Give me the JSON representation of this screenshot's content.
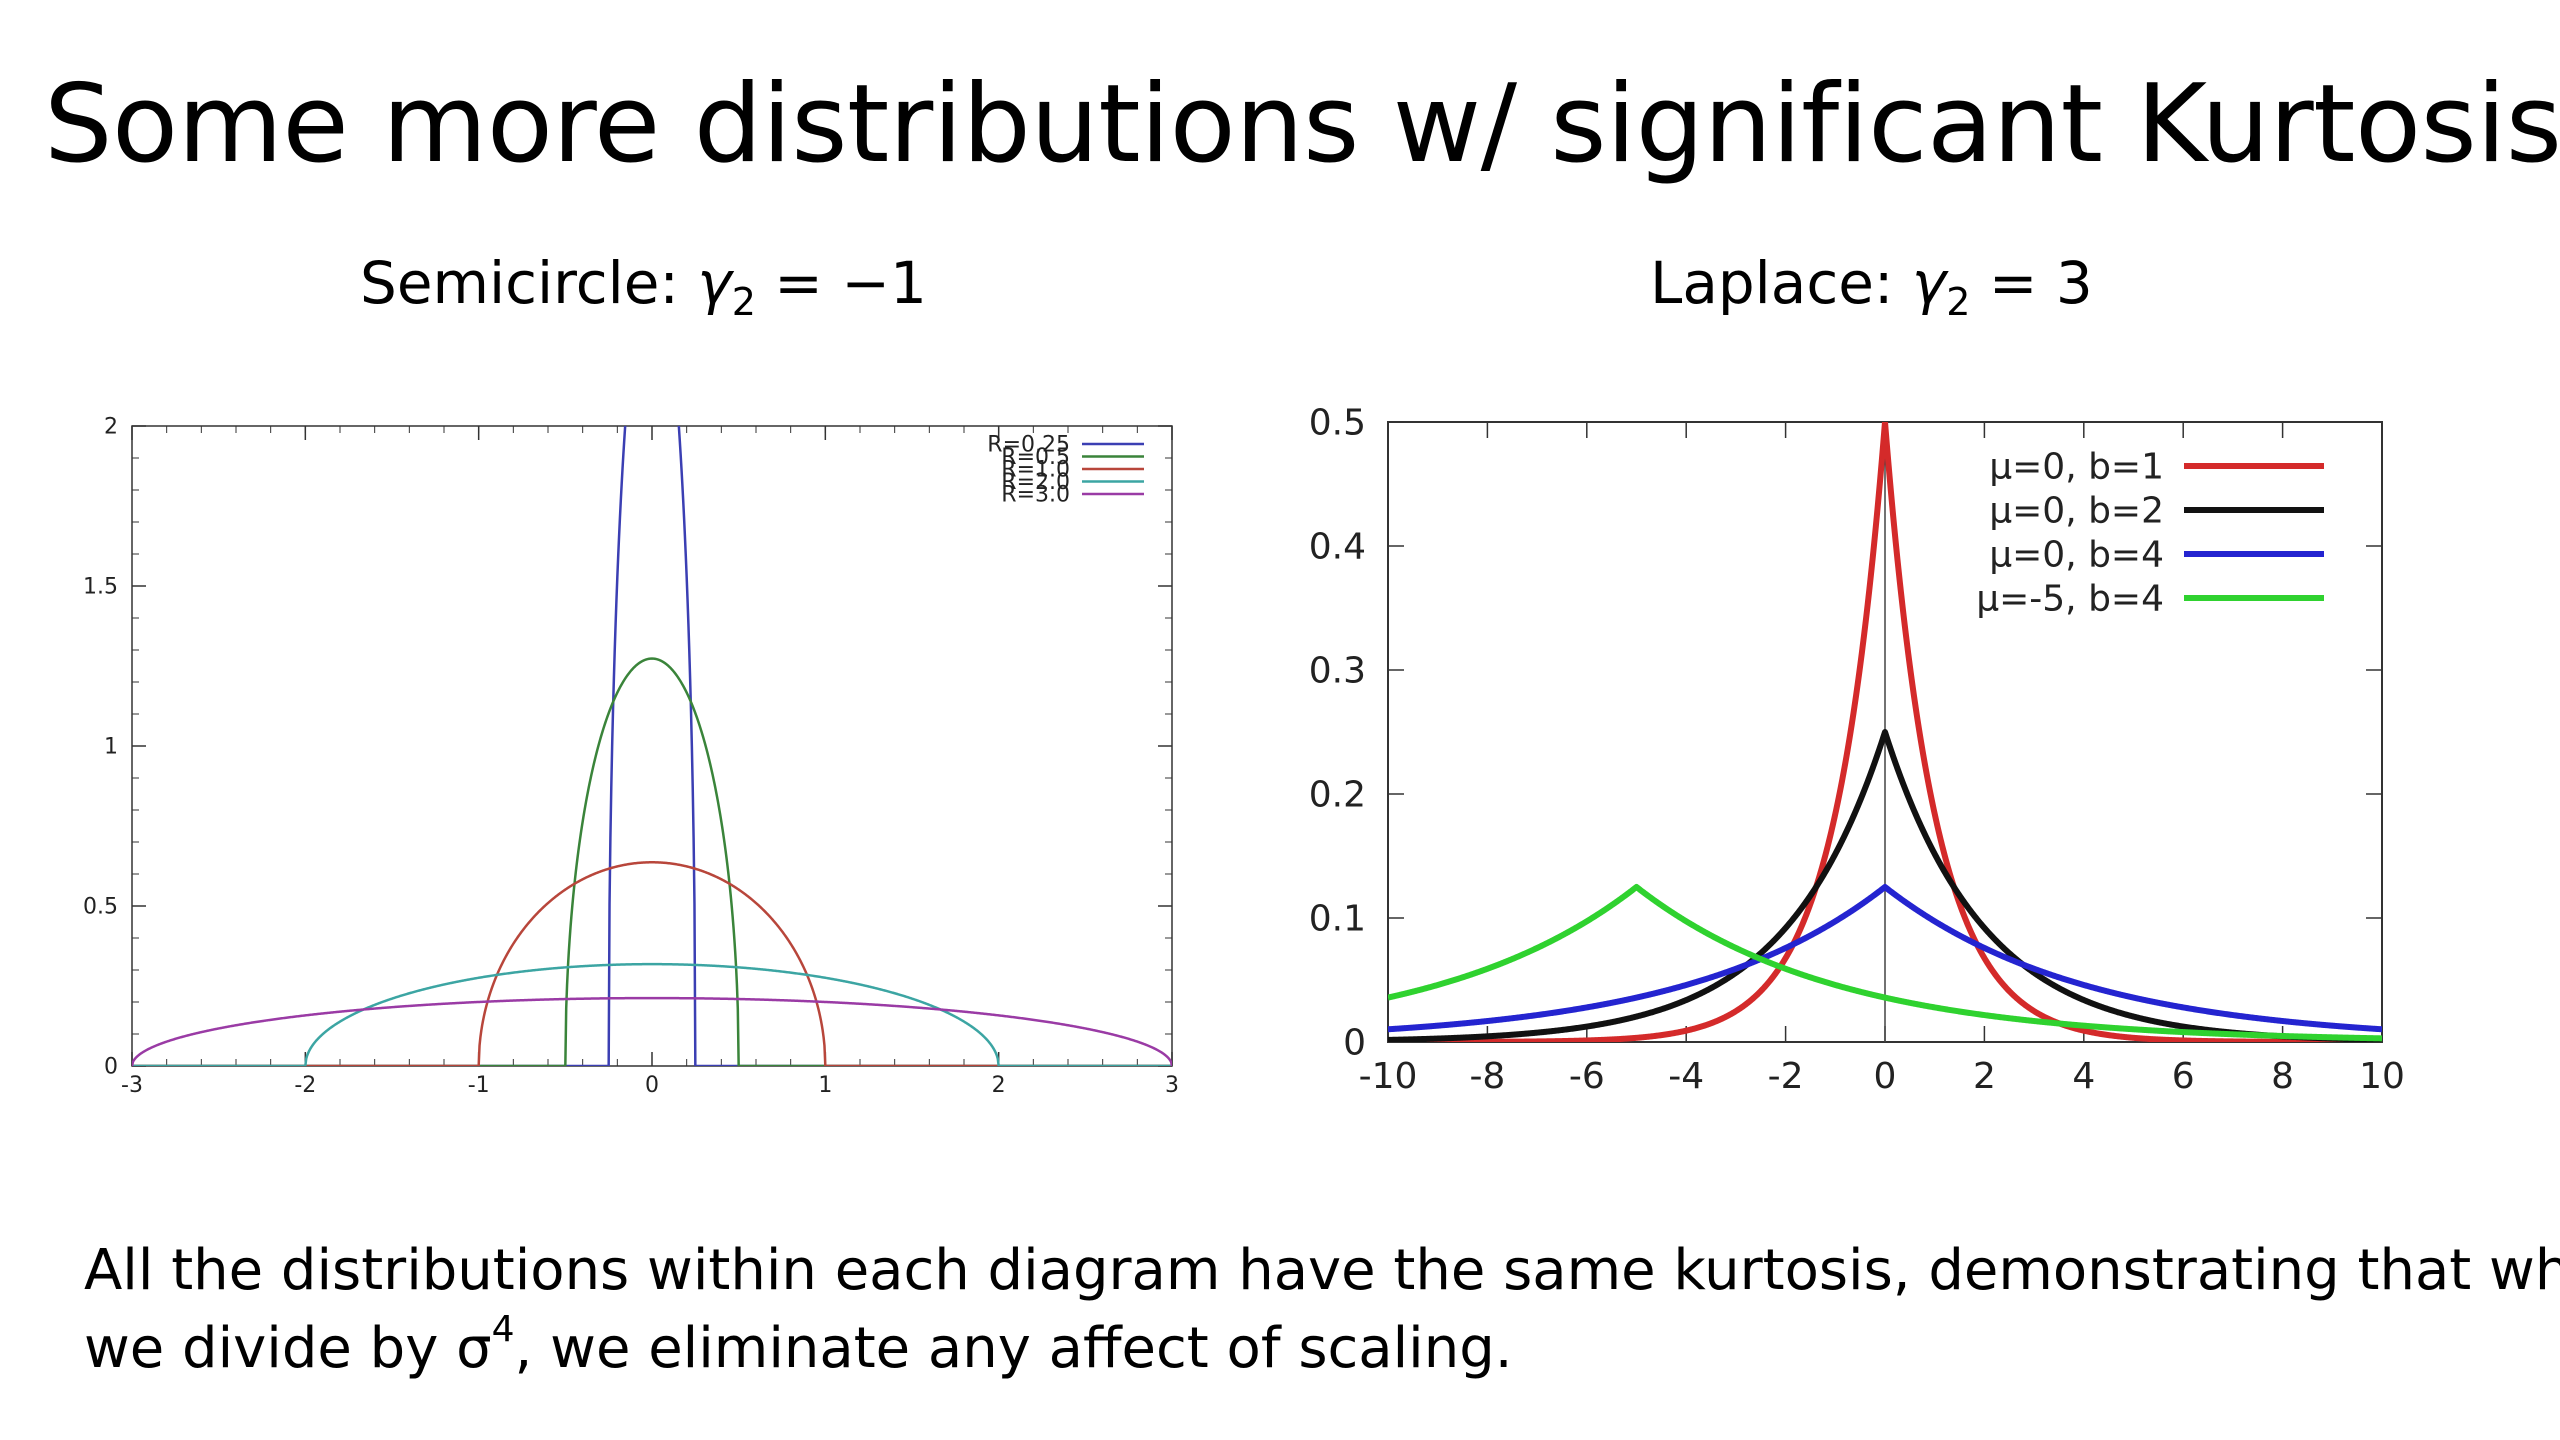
{
  "slide": {
    "title": "Some more distributions w/ significant Kurtosis:",
    "semicircle_label": "Semicircle: ",
    "semicircle_sym": "γ",
    "semicircle_sub": "2",
    "semicircle_val": " = −1",
    "laplace_label": "Laplace: ",
    "laplace_sym": "γ",
    "laplace_sub": "2",
    "laplace_val": " = 3",
    "note_line1": "All the distributions within each diagram have the same kurtosis, demonstrating that when",
    "note_line2_a": "we divide by σ",
    "note_line2_sup": "4",
    "note_line2_b": ", we eliminate any affect of scaling."
  },
  "chart_data": [
    {
      "type": "line",
      "function": "semicircle",
      "xlim": [
        -3,
        3
      ],
      "ylim": [
        0,
        2
      ],
      "xticks": [
        -3,
        -2,
        -1,
        0,
        1,
        2,
        3
      ],
      "yticks": [
        0,
        0.5,
        1,
        1.5,
        2
      ],
      "xtick_labels": [
        "-3",
        "-2",
        "-1",
        "0",
        "1",
        "2",
        "3"
      ],
      "ytick_labels": [
        "0",
        "0.5",
        "1",
        "1.5",
        "2"
      ],
      "legend_position": "top-right",
      "grid": false,
      "series": [
        {
          "name": "R=0.25",
          "R": 0.25,
          "color": "#3b3fb3"
        },
        {
          "name": "R=0.5",
          "R": 0.5,
          "color": "#3a843a"
        },
        {
          "name": "R=1.0",
          "R": 1.0,
          "color": "#b8463b"
        },
        {
          "name": "R=2.0",
          "R": 2.0,
          "color": "#3ca5a3"
        },
        {
          "name": "R=3.0",
          "R": 3.0,
          "color": "#9a3ba5"
        }
      ]
    },
    {
      "type": "line",
      "function": "laplace",
      "xlim": [
        -10,
        10
      ],
      "ylim": [
        0,
        0.5
      ],
      "xticks": [
        -10,
        -8,
        -6,
        -4,
        -2,
        0,
        2,
        4,
        6,
        8,
        10
      ],
      "yticks": [
        0,
        0.1,
        0.2,
        0.3,
        0.4,
        0.5
      ],
      "xtick_labels": [
        "-10",
        "-8",
        "-6",
        "-4",
        "-2",
        "0",
        "2",
        "4",
        "6",
        "8",
        "10"
      ],
      "ytick_labels": [
        "0",
        "0.1",
        "0.2",
        "0.3",
        "0.4",
        "0.5"
      ],
      "legend_position": "top-right",
      "grid": false,
      "series": [
        {
          "name": "μ=0, b=1",
          "mu": 0,
          "b": 1,
          "color": "#d42a2a"
        },
        {
          "name": "μ=0, b=2",
          "mu": 0,
          "b": 2,
          "color": "#111111"
        },
        {
          "name": "μ=0, b=4",
          "mu": 0,
          "b": 4,
          "color": "#2424d0"
        },
        {
          "name": "μ=-5, b=4",
          "mu": -5,
          "b": 4,
          "color": "#2fd22f"
        }
      ]
    }
  ]
}
